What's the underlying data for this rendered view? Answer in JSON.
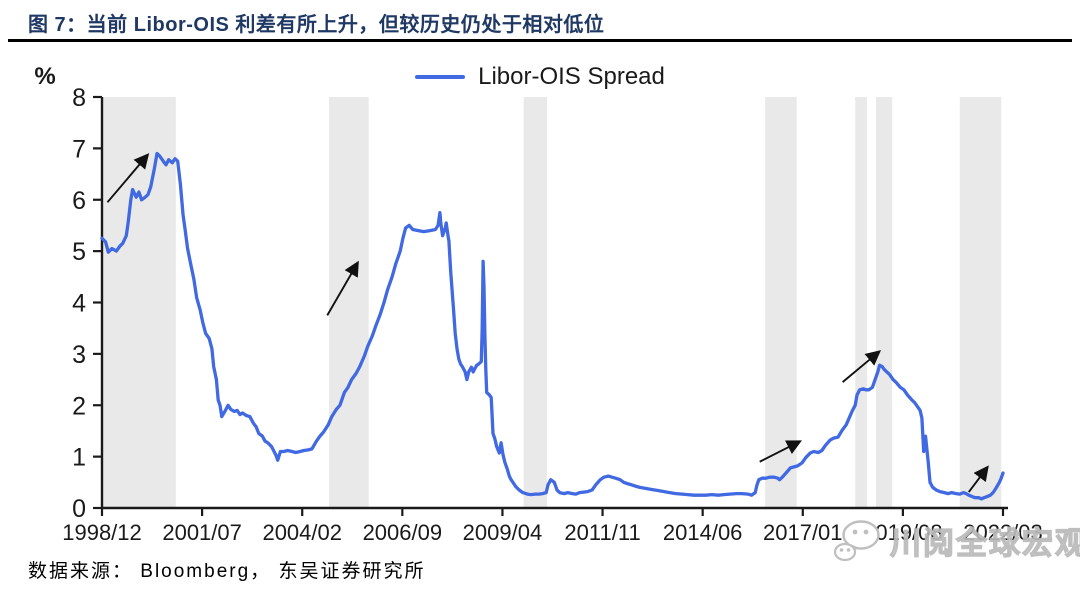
{
  "header": {
    "title": "图 7：当前 Libor-OIS 利差有所上升，但较历史仍处于相对低位"
  },
  "legend": {
    "label": "Libor-OIS Spread"
  },
  "footer": {
    "source": "数据来源：  Bloomberg， 东吴证券研究所"
  },
  "watermark": {
    "text": "川阅全球宏观",
    "icon": "wechat-icon"
  },
  "colors": {
    "line": "#4169E1",
    "band": "#E9E9E9",
    "title": "#1F3864",
    "axis": "#1A1A1A",
    "arrow": "#111111",
    "watermark": "#BFBFBF"
  },
  "chart_data": {
    "type": "line",
    "title": "Libor-OIS Spread",
    "xlabel": "",
    "ylabel": "%",
    "ylim": [
      0,
      8
    ],
    "yticks": [
      0,
      1,
      2,
      3,
      4,
      5,
      6,
      7,
      8
    ],
    "xticks": [
      "1998/12",
      "2001/07",
      "2004/02",
      "2006/09",
      "2009/04",
      "2011/11",
      "2014/06",
      "2017/01",
      "2019/08",
      "2022/03"
    ],
    "x_encoding": "fraction 0-1 of time axis from 1998/12 to 2022/03",
    "grid": false,
    "legend_position": "top-center",
    "shaded_periods": [
      [
        0.001,
        0.082
      ],
      [
        0.252,
        0.296
      ],
      [
        0.468,
        0.494
      ],
      [
        0.736,
        0.771
      ],
      [
        0.836,
        0.849
      ],
      [
        0.859,
        0.877
      ],
      [
        0.952,
        0.998
      ]
    ],
    "arrows": [
      {
        "x1": 0.006,
        "v1": 5.95,
        "x2": 0.051,
        "v2": 6.88
      },
      {
        "x1": 0.25,
        "v1": 3.75,
        "x2": 0.284,
        "v2": 4.78
      },
      {
        "x1": 0.73,
        "v1": 0.9,
        "x2": 0.775,
        "v2": 1.3
      },
      {
        "x1": 0.822,
        "v1": 2.45,
        "x2": 0.863,
        "v2": 3.05
      },
      {
        "x1": 0.962,
        "v1": 0.31,
        "x2": 0.983,
        "v2": 0.8
      }
    ],
    "series": [
      {
        "name": "Libor-OIS Spread",
        "color": "#4169E1",
        "points": [
          [
            0.0,
            5.25
          ],
          [
            0.004,
            5.18
          ],
          [
            0.007,
            4.98
          ],
          [
            0.011,
            5.05
          ],
          [
            0.016,
            5.0
          ],
          [
            0.02,
            5.1
          ],
          [
            0.023,
            5.15
          ],
          [
            0.027,
            5.3
          ],
          [
            0.029,
            5.55
          ],
          [
            0.032,
            6.0
          ],
          [
            0.034,
            6.2
          ],
          [
            0.038,
            6.05
          ],
          [
            0.041,
            6.15
          ],
          [
            0.044,
            6.0
          ],
          [
            0.048,
            6.05
          ],
          [
            0.051,
            6.1
          ],
          [
            0.054,
            6.25
          ],
          [
            0.058,
            6.6
          ],
          [
            0.061,
            6.9
          ],
          [
            0.064,
            6.85
          ],
          [
            0.068,
            6.75
          ],
          [
            0.071,
            6.68
          ],
          [
            0.074,
            6.78
          ],
          [
            0.078,
            6.72
          ],
          [
            0.081,
            6.8
          ],
          [
            0.084,
            6.75
          ],
          [
            0.087,
            6.3
          ],
          [
            0.09,
            5.7
          ],
          [
            0.092,
            5.45
          ],
          [
            0.095,
            5.05
          ],
          [
            0.099,
            4.7
          ],
          [
            0.102,
            4.45
          ],
          [
            0.105,
            4.1
          ],
          [
            0.109,
            3.85
          ],
          [
            0.112,
            3.6
          ],
          [
            0.115,
            3.4
          ],
          [
            0.119,
            3.3
          ],
          [
            0.122,
            3.1
          ],
          [
            0.124,
            2.75
          ],
          [
            0.127,
            2.5
          ],
          [
            0.129,
            2.1
          ],
          [
            0.131,
            2.0
          ],
          [
            0.133,
            1.78
          ],
          [
            0.137,
            1.9
          ],
          [
            0.14,
            2.0
          ],
          [
            0.143,
            1.92
          ],
          [
            0.147,
            1.88
          ],
          [
            0.15,
            1.9
          ],
          [
            0.153,
            1.82
          ],
          [
            0.156,
            1.85
          ],
          [
            0.16,
            1.8
          ],
          [
            0.164,
            1.78
          ],
          [
            0.168,
            1.65
          ],
          [
            0.171,
            1.58
          ],
          [
            0.174,
            1.45
          ],
          [
            0.178,
            1.4
          ],
          [
            0.181,
            1.3
          ],
          [
            0.184,
            1.27
          ],
          [
            0.188,
            1.2
          ],
          [
            0.191,
            1.1
          ],
          [
            0.193,
            1.03
          ],
          [
            0.195,
            0.93
          ],
          [
            0.198,
            1.1
          ],
          [
            0.202,
            1.1
          ],
          [
            0.206,
            1.12
          ],
          [
            0.211,
            1.1
          ],
          [
            0.215,
            1.08
          ],
          [
            0.22,
            1.1
          ],
          [
            0.224,
            1.12
          ],
          [
            0.229,
            1.13
          ],
          [
            0.233,
            1.15
          ],
          [
            0.238,
            1.3
          ],
          [
            0.242,
            1.4
          ],
          [
            0.246,
            1.48
          ],
          [
            0.251,
            1.62
          ],
          [
            0.255,
            1.78
          ],
          [
            0.26,
            1.92
          ],
          [
            0.264,
            2.0
          ],
          [
            0.269,
            2.25
          ],
          [
            0.273,
            2.35
          ],
          [
            0.277,
            2.5
          ],
          [
            0.282,
            2.62
          ],
          [
            0.286,
            2.75
          ],
          [
            0.291,
            2.95
          ],
          [
            0.295,
            3.15
          ],
          [
            0.3,
            3.35
          ],
          [
            0.304,
            3.55
          ],
          [
            0.309,
            3.78
          ],
          [
            0.313,
            4.0
          ],
          [
            0.317,
            4.25
          ],
          [
            0.322,
            4.5
          ],
          [
            0.326,
            4.75
          ],
          [
            0.331,
            5.0
          ],
          [
            0.334,
            5.25
          ],
          [
            0.337,
            5.45
          ],
          [
            0.341,
            5.5
          ],
          [
            0.345,
            5.42
          ],
          [
            0.351,
            5.4
          ],
          [
            0.357,
            5.38
          ],
          [
            0.364,
            5.4
          ],
          [
            0.37,
            5.42
          ],
          [
            0.373,
            5.5
          ],
          [
            0.375,
            5.75
          ],
          [
            0.376,
            5.55
          ],
          [
            0.378,
            5.3
          ],
          [
            0.381,
            5.45
          ],
          [
            0.382,
            5.55
          ],
          [
            0.384,
            5.3
          ],
          [
            0.385,
            5.2
          ],
          [
            0.387,
            4.6
          ],
          [
            0.39,
            3.9
          ],
          [
            0.392,
            3.4
          ],
          [
            0.394,
            3.1
          ],
          [
            0.396,
            2.9
          ],
          [
            0.398,
            2.8
          ],
          [
            0.4,
            2.75
          ],
          [
            0.403,
            2.65
          ],
          [
            0.405,
            2.5
          ],
          [
            0.407,
            2.65
          ],
          [
            0.41,
            2.74
          ],
          [
            0.412,
            2.65
          ],
          [
            0.414,
            2.72
          ],
          [
            0.416,
            2.78
          ],
          [
            0.418,
            2.8
          ],
          [
            0.421,
            2.85
          ],
          [
            0.422,
            3.5
          ],
          [
            0.423,
            4.8
          ],
          [
            0.424,
            4.3
          ],
          [
            0.425,
            3.35
          ],
          [
            0.426,
            2.7
          ],
          [
            0.427,
            2.25
          ],
          [
            0.43,
            2.2
          ],
          [
            0.432,
            2.15
          ],
          [
            0.434,
            1.45
          ],
          [
            0.436,
            1.35
          ],
          [
            0.438,
            1.2
          ],
          [
            0.441,
            1.07
          ],
          [
            0.443,
            1.27
          ],
          [
            0.445,
            1.05
          ],
          [
            0.447,
            0.9
          ],
          [
            0.45,
            0.75
          ],
          [
            0.452,
            0.62
          ],
          [
            0.454,
            0.55
          ],
          [
            0.456,
            0.5
          ],
          [
            0.459,
            0.42
          ],
          [
            0.463,
            0.35
          ],
          [
            0.467,
            0.3
          ],
          [
            0.472,
            0.27
          ],
          [
            0.476,
            0.26
          ],
          [
            0.481,
            0.27
          ],
          [
            0.485,
            0.27
          ],
          [
            0.489,
            0.28
          ],
          [
            0.493,
            0.3
          ],
          [
            0.495,
            0.45
          ],
          [
            0.498,
            0.55
          ],
          [
            0.502,
            0.5
          ],
          [
            0.505,
            0.35
          ],
          [
            0.508,
            0.3
          ],
          [
            0.513,
            0.28
          ],
          [
            0.517,
            0.3
          ],
          [
            0.522,
            0.28
          ],
          [
            0.526,
            0.27
          ],
          [
            0.53,
            0.3
          ],
          [
            0.539,
            0.32
          ],
          [
            0.544,
            0.35
          ],
          [
            0.548,
            0.45
          ],
          [
            0.553,
            0.55
          ],
          [
            0.557,
            0.6
          ],
          [
            0.562,
            0.62
          ],
          [
            0.566,
            0.6
          ],
          [
            0.57,
            0.58
          ],
          [
            0.575,
            0.55
          ],
          [
            0.579,
            0.5
          ],
          [
            0.584,
            0.47
          ],
          [
            0.588,
            0.45
          ],
          [
            0.593,
            0.42
          ],
          [
            0.597,
            0.4
          ],
          [
            0.604,
            0.38
          ],
          [
            0.61,
            0.36
          ],
          [
            0.617,
            0.34
          ],
          [
            0.624,
            0.32
          ],
          [
            0.63,
            0.3
          ],
          [
            0.637,
            0.28
          ],
          [
            0.644,
            0.27
          ],
          [
            0.65,
            0.26
          ],
          [
            0.657,
            0.25
          ],
          [
            0.67,
            0.25
          ],
          [
            0.677,
            0.26
          ],
          [
            0.684,
            0.25
          ],
          [
            0.69,
            0.26
          ],
          [
            0.697,
            0.27
          ],
          [
            0.704,
            0.28
          ],
          [
            0.71,
            0.28
          ],
          [
            0.717,
            0.27
          ],
          [
            0.721,
            0.25
          ],
          [
            0.725,
            0.3
          ],
          [
            0.727,
            0.45
          ],
          [
            0.729,
            0.55
          ],
          [
            0.733,
            0.58
          ],
          [
            0.737,
            0.58
          ],
          [
            0.741,
            0.6
          ],
          [
            0.746,
            0.6
          ],
          [
            0.75,
            0.58
          ],
          [
            0.752,
            0.55
          ],
          [
            0.755,
            0.6
          ],
          [
            0.759,
            0.68
          ],
          [
            0.764,
            0.78
          ],
          [
            0.768,
            0.8
          ],
          [
            0.772,
            0.82
          ],
          [
            0.777,
            0.88
          ],
          [
            0.781,
            0.98
          ],
          [
            0.786,
            1.07
          ],
          [
            0.79,
            1.1
          ],
          [
            0.795,
            1.08
          ],
          [
            0.799,
            1.12
          ],
          [
            0.803,
            1.22
          ],
          [
            0.808,
            1.32
          ],
          [
            0.812,
            1.36
          ],
          [
            0.817,
            1.38
          ],
          [
            0.821,
            1.5
          ],
          [
            0.826,
            1.62
          ],
          [
            0.83,
            1.78
          ],
          [
            0.833,
            1.9
          ],
          [
            0.836,
            2.0
          ],
          [
            0.838,
            2.2
          ],
          [
            0.841,
            2.3
          ],
          [
            0.845,
            2.32
          ],
          [
            0.848,
            2.3
          ],
          [
            0.851,
            2.3
          ],
          [
            0.855,
            2.35
          ],
          [
            0.858,
            2.5
          ],
          [
            0.861,
            2.65
          ],
          [
            0.863,
            2.78
          ],
          [
            0.866,
            2.75
          ],
          [
            0.868,
            2.7
          ],
          [
            0.871,
            2.65
          ],
          [
            0.874,
            2.6
          ],
          [
            0.878,
            2.5
          ],
          [
            0.881,
            2.45
          ],
          [
            0.886,
            2.35
          ],
          [
            0.89,
            2.3
          ],
          [
            0.894,
            2.2
          ],
          [
            0.899,
            2.1
          ],
          [
            0.902,
            2.05
          ],
          [
            0.906,
            1.95
          ],
          [
            0.908,
            1.9
          ],
          [
            0.91,
            1.75
          ],
          [
            0.912,
            1.1
          ],
          [
            0.914,
            1.4
          ],
          [
            0.917,
            0.9
          ],
          [
            0.919,
            0.5
          ],
          [
            0.922,
            0.4
          ],
          [
            0.926,
            0.35
          ],
          [
            0.93,
            0.32
          ],
          [
            0.935,
            0.3
          ],
          [
            0.939,
            0.28
          ],
          [
            0.943,
            0.3
          ],
          [
            0.948,
            0.28
          ],
          [
            0.952,
            0.27
          ],
          [
            0.956,
            0.3
          ],
          [
            0.959,
            0.28
          ],
          [
            0.962,
            0.25
          ],
          [
            0.966,
            0.22
          ],
          [
            0.969,
            0.2
          ],
          [
            0.973,
            0.2
          ],
          [
            0.976,
            0.18
          ],
          [
            0.979,
            0.2
          ],
          [
            0.982,
            0.22
          ],
          [
            0.986,
            0.25
          ],
          [
            0.989,
            0.3
          ],
          [
            0.992,
            0.38
          ],
          [
            0.996,
            0.5
          ],
          [
            0.998,
            0.58
          ],
          [
            1.0,
            0.68
          ]
        ]
      }
    ]
  }
}
